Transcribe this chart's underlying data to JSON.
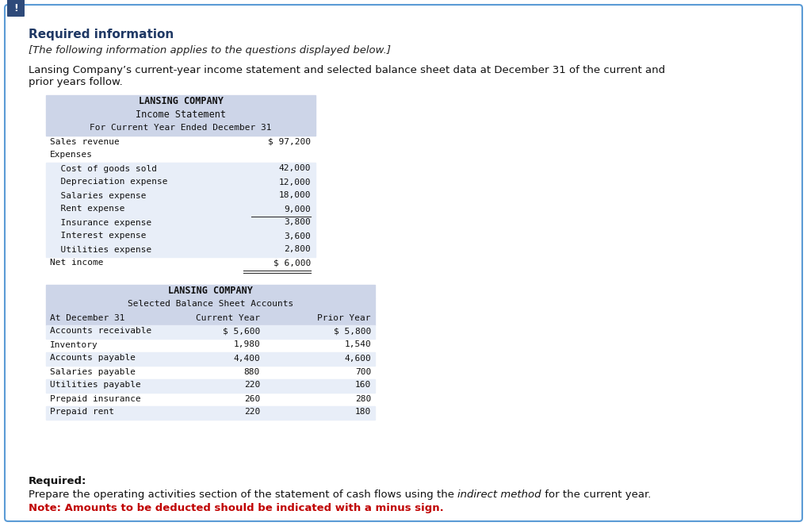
{
  "bg_color": "#ffffff",
  "border_color": "#5b9bd5",
  "exclamation_bg": "#2e4a7a",
  "required_info_title": "Required information",
  "required_info_title_color": "#1f3864",
  "italic_line": "[The following information applies to the questions displayed below.]",
  "body_line1": "Lansing Company’s current-year income statement and selected balance sheet data at December 31 of the current and",
  "body_line2": "prior years follow.",
  "table1_header1": "LANSING COMPANY",
  "table1_header2": "Income Statement",
  "table1_header3": "For Current Year Ended December 31",
  "table1_header_bg": "#cdd5e8",
  "table1_row_bg_alt": "#e8eef8",
  "table1_rows": [
    {
      "label": "Sales revenue",
      "value": "$ 97,200",
      "indent": 0
    },
    {
      "label": "Expenses",
      "value": "",
      "indent": 0
    },
    {
      "label": "  Cost of goods sold",
      "value": "42,000",
      "indent": 1
    },
    {
      "label": "  Depreciation expense",
      "value": "12,000",
      "indent": 1
    },
    {
      "label": "  Salaries expense",
      "value": "18,000",
      "indent": 1
    },
    {
      "label": "  Rent expense",
      "value": "9,000",
      "indent": 1
    },
    {
      "label": "  Insurance expense",
      "value": "3,800",
      "indent": 1
    },
    {
      "label": "  Interest expense",
      "value": "3,600",
      "indent": 1
    },
    {
      "label": "  Utilities expense",
      "value": "2,800",
      "indent": 1
    },
    {
      "label": "Net income",
      "value": "$ 6,000",
      "indent": 0
    }
  ],
  "table2_header1": "LANSING COMPANY",
  "table2_header2": "Selected Balance Sheet Accounts",
  "table2_col_headers": [
    "At December 31",
    "Current Year",
    "Prior Year"
  ],
  "table2_header_bg": "#cdd5e8",
  "table2_row_bg_alt": "#e8eef8",
  "table2_rows": [
    {
      "label": "Accounts receivable",
      "current": "$ 5,600",
      "prior": "$ 5,800"
    },
    {
      "label": "Inventory",
      "current": "1,980",
      "prior": "1,540"
    },
    {
      "label": "Accounts payable",
      "current": "4,400",
      "prior": "4,600"
    },
    {
      "label": "Salaries payable",
      "current": "880",
      "prior": "700"
    },
    {
      "label": "Utilities payable",
      "current": "220",
      "prior": "160"
    },
    {
      "label": "Prepaid insurance",
      "current": "260",
      "prior": "280"
    },
    {
      "label": "Prepaid rent",
      "current": "220",
      "prior": "180"
    }
  ],
  "required_label": "Required:",
  "required_body": "Prepare the operating activities section of the statement of cash flows using the ",
  "required_italic": "indirect method",
  "required_body2": " for the current year.",
  "note_red": "Note: Amounts to be deducted should be indicated with a minus sign.",
  "mono_font": "DejaVu Sans Mono",
  "sans_font": "DejaVu Sans"
}
